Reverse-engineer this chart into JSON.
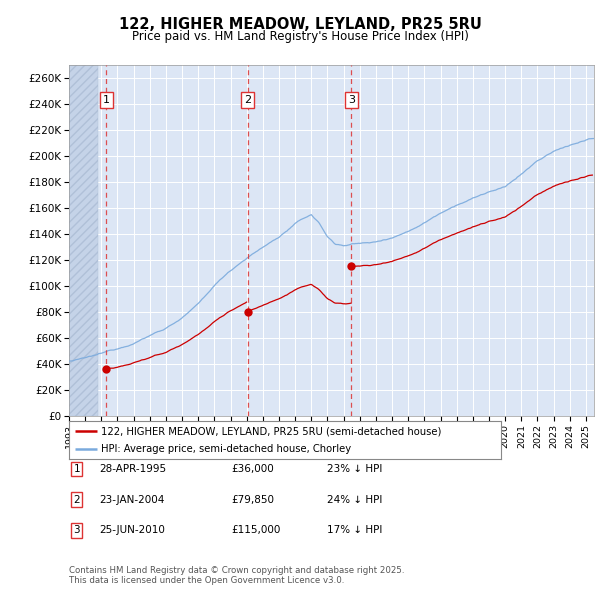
{
  "title": "122, HIGHER MEADOW, LEYLAND, PR25 5RU",
  "subtitle": "Price paid vs. HM Land Registry's House Price Index (HPI)",
  "legend_line1": "122, HIGHER MEADOW, LEYLAND, PR25 5RU (semi-detached house)",
  "legend_line2": "HPI: Average price, semi-detached house, Chorley",
  "footer": "Contains HM Land Registry data © Crown copyright and database right 2025.\nThis data is licensed under the Open Government Licence v3.0.",
  "ylim": [
    0,
    270000
  ],
  "yticks": [
    0,
    20000,
    40000,
    60000,
    80000,
    100000,
    120000,
    140000,
    160000,
    180000,
    200000,
    220000,
    240000,
    260000
  ],
  "ytick_labels": [
    "£0",
    "£20K",
    "£40K",
    "£60K",
    "£80K",
    "£100K",
    "£120K",
    "£140K",
    "£160K",
    "£180K",
    "£200K",
    "£220K",
    "£240K",
    "£260K"
  ],
  "xlim_start": 1993.0,
  "xlim_end": 2025.5,
  "sales": [
    {
      "num": 1,
      "date": "28-APR-1995",
      "year": 1995.32,
      "price": 36000,
      "pct": "23%"
    },
    {
      "num": 2,
      "date": "23-JAN-2004",
      "year": 2004.06,
      "price": 79850,
      "pct": "24%"
    },
    {
      "num": 3,
      "date": "25-JUN-2010",
      "year": 2010.48,
      "price": 115000,
      "pct": "17%"
    }
  ],
  "bg_color": "#dce6f5",
  "grid_color": "#ffffff",
  "hatch_color": "#c5d3e8",
  "red_line_color": "#cc0000",
  "blue_line_color": "#7aaadd",
  "sale_marker_color": "#cc0000",
  "vline_color": "#dd3333",
  "hpi_ref_years": [
    1993.0,
    1994.0,
    1995.0,
    1996.0,
    1997.0,
    1998.0,
    1999.0,
    2000.0,
    2001.0,
    2002.0,
    2003.0,
    2004.0,
    2005.0,
    2006.0,
    2007.0,
    2008.0,
    2008.5,
    2009.0,
    2009.5,
    2010.0,
    2010.5,
    2011.0,
    2012.0,
    2013.0,
    2014.0,
    2015.0,
    2016.0,
    2017.0,
    2018.0,
    2019.0,
    2020.0,
    2021.0,
    2022.0,
    2023.0,
    2024.0,
    2025.3
  ],
  "hpi_ref_vals": [
    42000,
    44000,
    47000,
    51000,
    56000,
    62000,
    68000,
    76000,
    86000,
    100000,
    112000,
    122000,
    130000,
    138000,
    148000,
    155000,
    148000,
    138000,
    132000,
    131000,
    133000,
    133000,
    134000,
    138000,
    143000,
    150000,
    158000,
    165000,
    170000,
    175000,
    178000,
    188000,
    198000,
    205000,
    210000,
    215000
  ]
}
